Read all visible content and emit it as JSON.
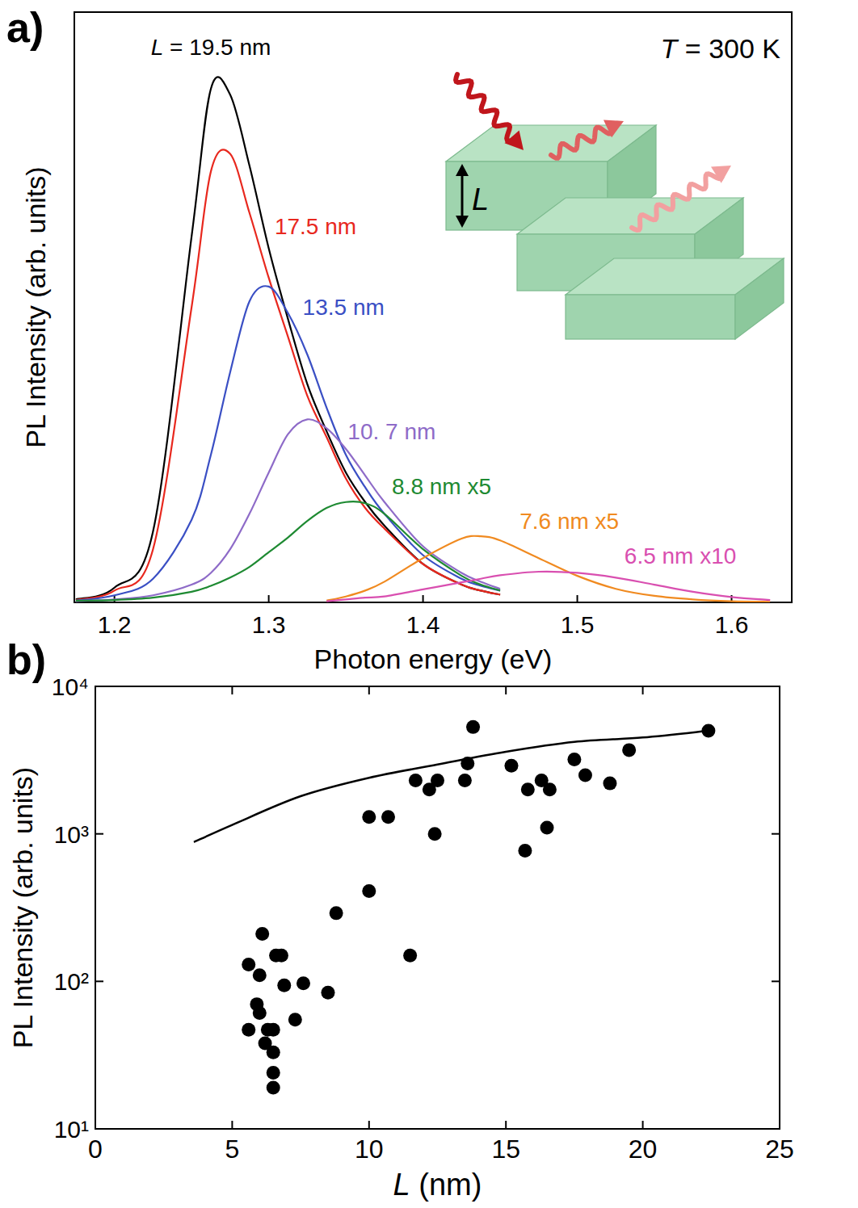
{
  "chart_data": [
    {
      "type": "line",
      "panel_label": "a)",
      "x_label": "Photon energy (eV)",
      "y_label": "PL Intensity (arb. units)",
      "annotations": [
        "T = 300 K"
      ],
      "inset_label": "L",
      "xlim": [
        1.174,
        1.639
      ],
      "xticks": [
        1.2,
        1.3,
        1.4,
        1.5,
        1.6
      ],
      "ylim": [
        0,
        100
      ],
      "tick_labels": "x",
      "x": [
        1.175,
        1.2,
        1.225,
        1.25,
        1.2625,
        1.275,
        1.2875,
        1.3,
        1.3125,
        1.325,
        1.3375,
        1.35,
        1.3625,
        1.375,
        1.4,
        1.425,
        1.4375,
        1.45,
        1.475,
        1.5,
        1.525,
        1.55,
        1.575,
        1.6,
        1.625
      ],
      "series": [
        {
          "name": "L = 19.5 nm",
          "color": "#000000",
          "values": [
            0.5,
            2.5,
            12,
            62,
            87,
            86,
            74,
            60,
            48,
            37,
            29,
            22,
            17,
            13,
            6.5,
            3,
            2,
            1.3,
            null,
            null,
            null,
            null,
            null,
            null,
            null
          ]
        },
        {
          "name": "17.5 nm",
          "color": "#e8281e",
          "values": [
            0.4,
            2,
            9,
            50,
            73,
            76,
            66,
            55,
            45,
            35,
            28,
            21,
            16,
            12.5,
            6.5,
            3,
            2,
            1.3,
            null,
            null,
            null,
            null,
            null,
            null,
            null
          ]
        },
        {
          "name": "13.5 nm",
          "color": "#3a4fc4",
          "values": [
            0.3,
            1.2,
            4,
            14,
            25,
            39,
            51,
            53.5,
            49,
            42,
            33,
            25,
            19.5,
            15,
            8,
            4,
            2.8,
            2,
            null,
            null,
            null,
            null,
            null,
            null,
            null
          ]
        },
        {
          "name": "10. 7 nm",
          "color": "#8e6bc8",
          "values": [
            0.2,
            0.5,
            1.2,
            3,
            5,
            9,
            15,
            22,
            28.5,
            31,
            29.5,
            26,
            21.5,
            17,
            9.5,
            5,
            3.5,
            2.3,
            null,
            null,
            null,
            null,
            null,
            null,
            null
          ]
        },
        {
          "name": "8.8 nm x5",
          "color": "#1e8a32",
          "values": [
            0.3,
            0.4,
            0.8,
            1.8,
            2.8,
            4.2,
            6,
            8.5,
            11,
            13.8,
            16,
            17,
            16.8,
            15,
            9,
            4.5,
            3,
            2,
            null,
            null,
            null,
            null,
            null,
            null,
            null
          ]
        },
        {
          "name": "7.6 nm x5",
          "color": "#f08a20",
          "values": [
            null,
            null,
            null,
            null,
            null,
            null,
            null,
            null,
            null,
            null,
            0.3,
            1,
            2,
            3.5,
            7.5,
            10.8,
            11.2,
            10.5,
            7.5,
            4.5,
            2.3,
            1.1,
            0.5,
            0.2,
            0.1
          ]
        },
        {
          "name": "6.5 nm x10",
          "color": "#d94fb0",
          "values": [
            null,
            null,
            null,
            null,
            null,
            null,
            null,
            null,
            null,
            null,
            0.2,
            0.5,
            0.8,
            1,
            2.2,
            3.4,
            4,
            4.6,
            5.2,
            5,
            4.2,
            3,
            1.8,
            0.9,
            0.4
          ]
        }
      ]
    },
    {
      "type": "scatter",
      "panel_label": "b)",
      "x_label": "L (nm)",
      "y_label": "PL Intensity (arb. units)",
      "log": "y",
      "xlim": [
        0,
        25
      ],
      "xticks": [
        0,
        5,
        10,
        15,
        20,
        25
      ],
      "ylim": [
        10,
        10000
      ],
      "yticks": [
        {
          "value": 10,
          "label": "10¹"
        },
        {
          "value": 100,
          "label": "10²"
        },
        {
          "value": 1000,
          "label": "10³"
        },
        {
          "value": 10000,
          "label": "10⁴"
        }
      ],
      "series": [
        {
          "type": "scatter",
          "color": "#000000",
          "marker": "circle",
          "x": [
            22.4,
            13.8,
            19.5,
            17.5,
            13.6,
            13.5,
            15.2,
            17.9,
            18.8,
            16.3,
            11.7,
            12.5,
            12.2,
            15.8,
            16.6,
            16.5,
            15.7,
            10.0,
            10.7,
            12.4,
            10.0,
            8.8,
            11.5,
            8.5,
            5.6,
            6.0,
            6.1,
            5.9,
            6.0,
            5.6,
            6.2,
            6.3,
            6.5,
            6.5,
            6.5,
            6.5,
            6.6,
            6.8,
            6.9,
            7.6,
            7.3
          ],
          "values": [
            5000,
            5300,
            3700,
            3200,
            3000,
            2300,
            2900,
            2500,
            2200,
            2300,
            2300,
            2300,
            2000,
            2000,
            2000,
            1100,
            770,
            1300,
            1300,
            1000,
            410,
            290,
            150,
            84,
            130,
            110,
            210,
            70,
            61,
            47,
            38,
            47,
            47,
            33,
            24,
            19,
            150,
            150,
            94,
            97,
            55
          ]
        },
        {
          "type": "line",
          "color": "#000000",
          "line_style": "solid",
          "x": [
            3.6,
            5,
            7.5,
            10,
            12.5,
            15,
            17.5,
            20,
            22.4
          ],
          "values": [
            880,
            1150,
            1800,
            2400,
            2950,
            3600,
            4200,
            4500,
            5000
          ]
        }
      ]
    }
  ]
}
